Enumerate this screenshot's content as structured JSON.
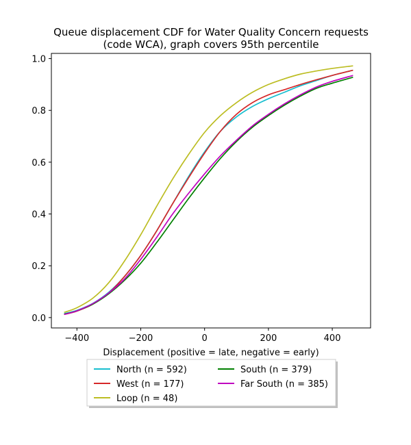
{
  "chart_data": {
    "type": "line",
    "title_line1": "Queue displacement CDF for Water Quality Concern  requests",
    "title_line2": "(code WCA), graph covers 95th percentile",
    "xlabel": "Displacement (positive = late, negative = early)",
    "ylabel": "",
    "xlim": [
      -480,
      520
    ],
    "ylim": [
      -0.04,
      1.02
    ],
    "xticks": [
      -400,
      -200,
      0,
      200,
      400
    ],
    "yticks": [
      0.0,
      0.2,
      0.4,
      0.6,
      0.8,
      1.0
    ],
    "xtick_labels": [
      "−400",
      "−200",
      "0",
      "200",
      "400"
    ],
    "ytick_labels": [
      "0.0",
      "0.2",
      "0.4",
      "0.6",
      "0.8",
      "1.0"
    ],
    "grid": false,
    "legend_position": "below",
    "series": [
      {
        "name": "North (n = 592)",
        "color": "#17becf",
        "x": [
          -440,
          -400,
          -350,
          -300,
          -250,
          -200,
          -150,
          -100,
          -50,
          0,
          50,
          100,
          150,
          200,
          250,
          300,
          350,
          400,
          465
        ],
        "y": [
          0.015,
          0.028,
          0.055,
          0.098,
          0.16,
          0.24,
          0.335,
          0.44,
          0.545,
          0.64,
          0.72,
          0.775,
          0.815,
          0.845,
          0.87,
          0.895,
          0.915,
          0.935,
          0.955
        ]
      },
      {
        "name": "West (n = 177)",
        "color": "#d62728",
        "x": [
          -440,
          -400,
          -350,
          -300,
          -250,
          -200,
          -150,
          -100,
          -50,
          0,
          50,
          100,
          150,
          200,
          250,
          300,
          350,
          400,
          465
        ],
        "y": [
          0.012,
          0.025,
          0.052,
          0.095,
          0.16,
          0.24,
          0.335,
          0.44,
          0.54,
          0.635,
          0.72,
          0.785,
          0.83,
          0.86,
          0.88,
          0.9,
          0.918,
          0.935,
          0.955
        ]
      },
      {
        "name": "Loop (n = 48)",
        "color": "#bcbd22",
        "x": [
          -440,
          -400,
          -350,
          -300,
          -250,
          -200,
          -150,
          -100,
          -50,
          0,
          50,
          100,
          150,
          200,
          250,
          300,
          350,
          400,
          465
        ],
        "y": [
          0.02,
          0.038,
          0.075,
          0.135,
          0.22,
          0.32,
          0.43,
          0.535,
          0.63,
          0.715,
          0.78,
          0.83,
          0.87,
          0.9,
          0.922,
          0.94,
          0.952,
          0.962,
          0.972
        ]
      },
      {
        "name": "South (n = 379)",
        "color": "#008000",
        "x": [
          -440,
          -400,
          -350,
          -300,
          -250,
          -200,
          -150,
          -100,
          -50,
          0,
          50,
          100,
          150,
          200,
          250,
          300,
          350,
          400,
          465
        ],
        "y": [
          0.013,
          0.026,
          0.052,
          0.092,
          0.145,
          0.21,
          0.29,
          0.375,
          0.46,
          0.54,
          0.615,
          0.68,
          0.735,
          0.78,
          0.82,
          0.855,
          0.885,
          0.905,
          0.928
        ]
      },
      {
        "name": "Far South (n = 385)",
        "color": "#bf00bf",
        "x": [
          -440,
          -400,
          -350,
          -300,
          -250,
          -200,
          -150,
          -100,
          -50,
          0,
          50,
          100,
          150,
          200,
          250,
          300,
          350,
          400,
          465
        ],
        "y": [
          0.012,
          0.026,
          0.054,
          0.095,
          0.15,
          0.225,
          0.31,
          0.4,
          0.48,
          0.555,
          0.625,
          0.685,
          0.74,
          0.785,
          0.825,
          0.86,
          0.89,
          0.912,
          0.935
        ]
      }
    ]
  }
}
